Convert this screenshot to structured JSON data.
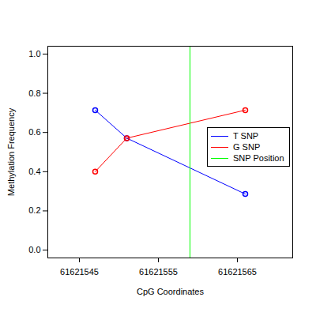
{
  "chart_data": {
    "type": "line",
    "x_label": "CpG Coordinates",
    "y_label": "Methylation Frequency",
    "xlim": [
      61621541,
      61621572
    ],
    "xticks": [
      61621545,
      61621555,
      61621565
    ],
    "ylim": [
      -0.04,
      1.04
    ],
    "yticks": [
      {
        "value": 0,
        "label": "0.0"
      },
      0.2,
      0.4,
      0.6,
      0.8,
      {
        "value": 1,
        "label": "1.0"
      }
    ],
    "legend": "right",
    "series": [
      {
        "name": "T SNP",
        "color": "#0000ff",
        "marker": "circle",
        "x": [
          61621547,
          61621551,
          61621566
        ],
        "values": [
          0.714,
          0.571,
          0.286
        ]
      },
      {
        "name": "G SNP",
        "color": "#ff0000",
        "marker": "circle",
        "x": [
          61621547,
          61621551,
          61621566
        ],
        "values": [
          0.4,
          0.571,
          0.714
        ]
      }
    ],
    "snp_line": {
      "name": "SNP Position",
      "color": "#00ff00",
      "x": 61621559
    }
  }
}
